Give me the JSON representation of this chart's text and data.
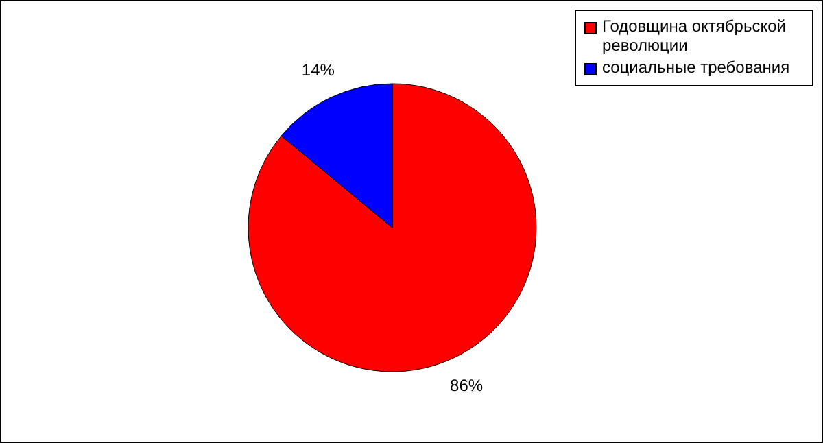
{
  "chart_data": {
    "type": "pie",
    "categories": [
      "Годовщина октябрьской революции",
      "социальные требования"
    ],
    "values": [
      86,
      14
    ],
    "colors": [
      "#ff0000",
      "#0000ff"
    ],
    "value_labels": [
      "86%",
      "14%"
    ],
    "legend": "top right"
  }
}
